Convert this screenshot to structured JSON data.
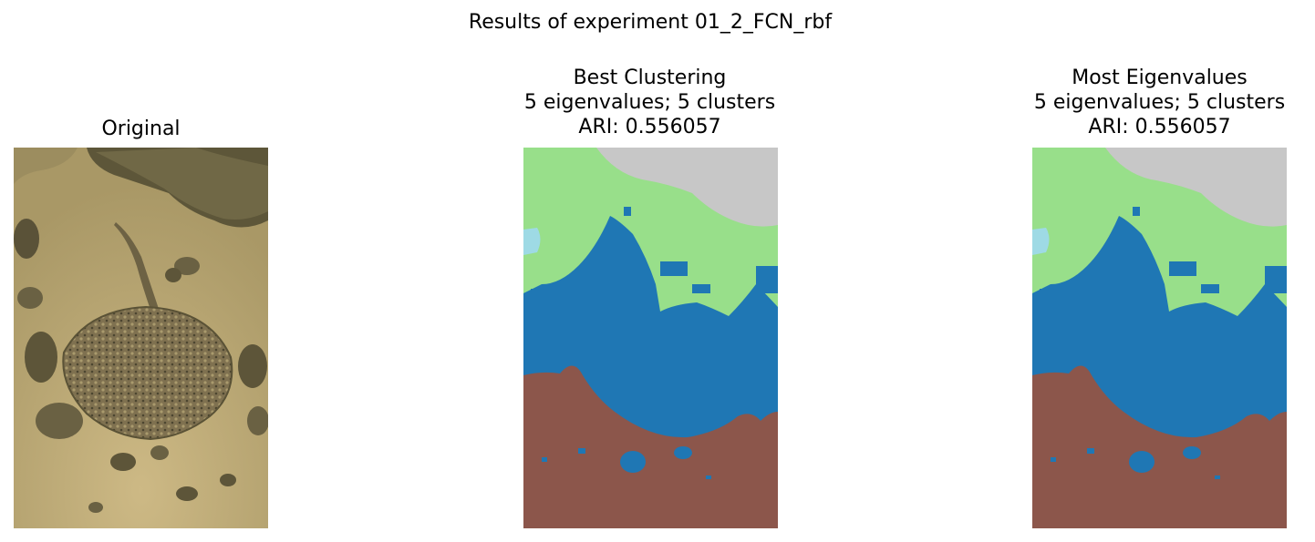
{
  "suptitle": "Results of experiment 01_2_FCN_rbf",
  "panels": [
    {
      "id": "original",
      "lines": [
        "Original"
      ]
    },
    {
      "id": "best",
      "lines": [
        "Best Clustering",
        "5 eigenvalues; 5 clusters",
        "ARI: 0.556057"
      ]
    },
    {
      "id": "most",
      "lines": [
        "Most Eigenvalues",
        "5 eigenvalues; 5 clusters",
        "ARI: 0.556057"
      ]
    }
  ],
  "colors": {
    "sand": "#c3b07a",
    "rock": "#6f6846",
    "stingray": "#7a6d4a",
    "cluster_blue": "#1f77b4",
    "cluster_green": "#98df8a",
    "cluster_gray": "#c7c7c7",
    "cluster_lightblue": "#9edae5",
    "cluster_brown": "#8c564b"
  }
}
